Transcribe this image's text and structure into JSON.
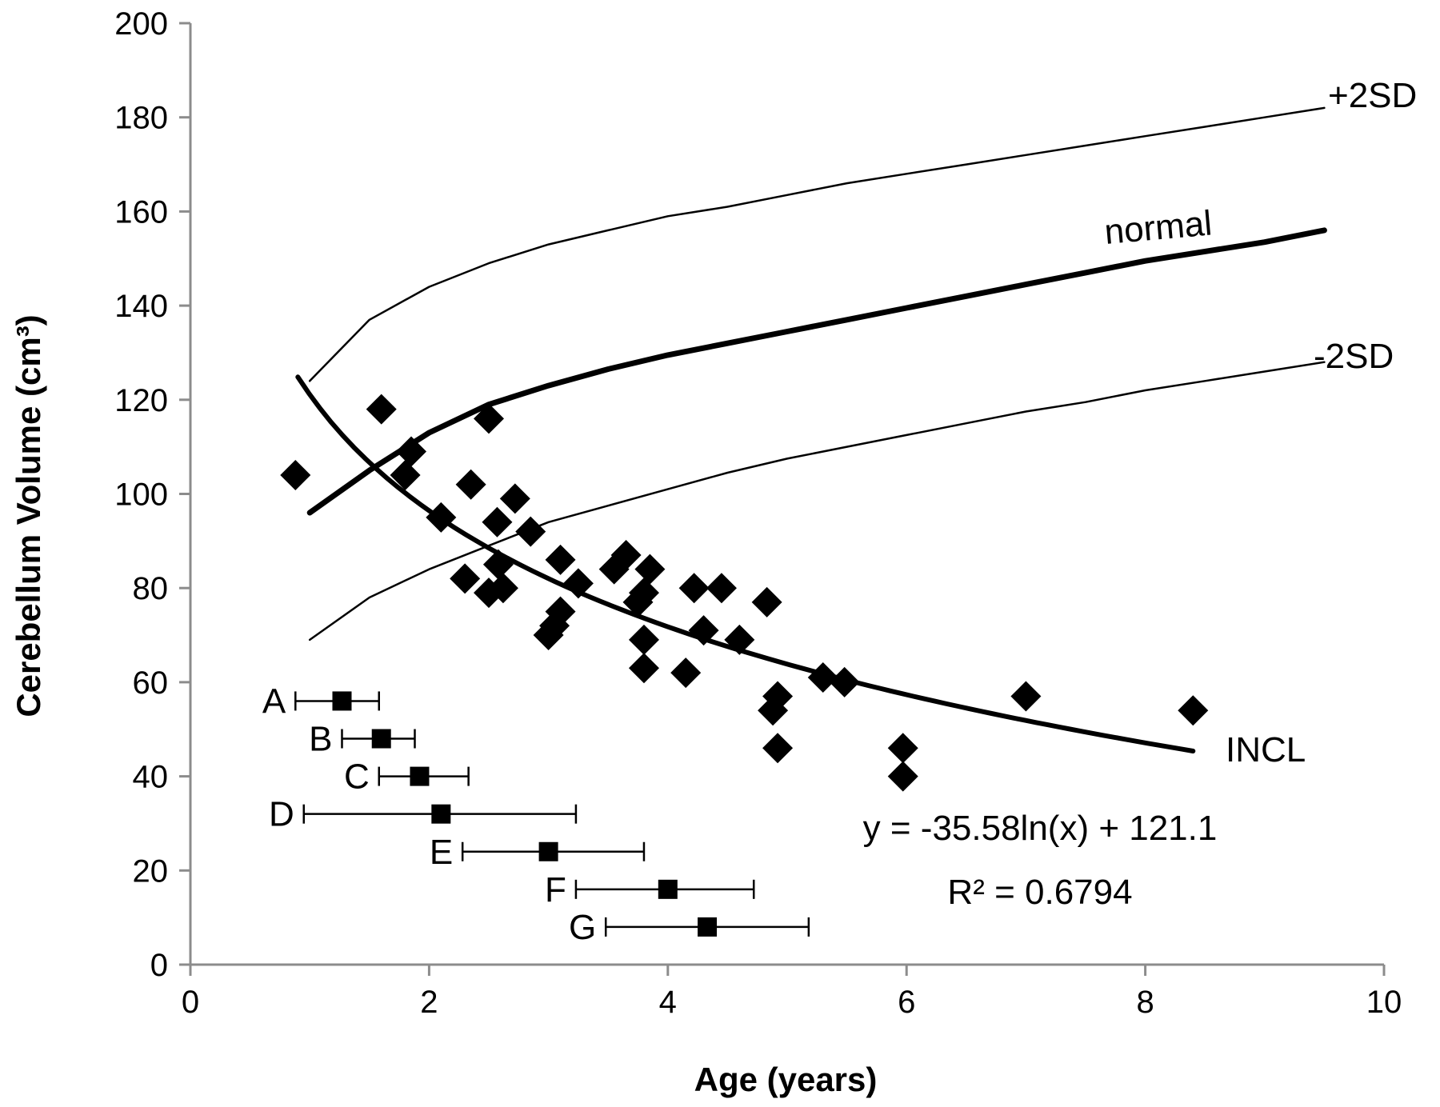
{
  "chart_data": {
    "type": "scatter",
    "xlabel": "Age (years)",
    "ylabel": "Cerebellum Volume (cm³)",
    "xlim": [
      0,
      10
    ],
    "ylim": [
      0,
      200
    ],
    "x_ticks": [
      0,
      2,
      4,
      6,
      8,
      10
    ],
    "y_ticks": [
      0,
      20,
      40,
      60,
      80,
      100,
      120,
      140,
      160,
      180,
      200
    ],
    "grid": false,
    "reference_curves": [
      {
        "label": "+2SD",
        "x": [
          1.0,
          1.5,
          2,
          2.5,
          3,
          3.5,
          4,
          4.5,
          5,
          5.5,
          6,
          6.5,
          7,
          7.5,
          8,
          8.5,
          9,
          9.5
        ],
        "y": [
          124,
          137,
          144,
          149,
          153,
          156,
          159,
          161,
          163.5,
          166,
          168,
          170,
          172,
          174,
          176,
          178,
          180,
          182
        ],
        "style": "thin"
      },
      {
        "label": "normal",
        "x": [
          1.0,
          1.5,
          2,
          2.5,
          3,
          3.5,
          4,
          4.5,
          5,
          5.5,
          6,
          6.5,
          7,
          7.5,
          8,
          8.5,
          9,
          9.5
        ],
        "y": [
          96,
          105,
          113,
          119,
          123,
          126.5,
          129.5,
          132,
          134.5,
          137,
          139.5,
          142,
          144.5,
          147,
          149.5,
          151.5,
          153.5,
          156
        ],
        "style": "thick"
      },
      {
        "label": "-2SD",
        "x": [
          1.0,
          1.5,
          2,
          2.5,
          3,
          3.5,
          4,
          4.5,
          5,
          5.5,
          6,
          6.5,
          7,
          7.5,
          8,
          8.5,
          9,
          9.5
        ],
        "y": [
          69,
          78,
          84,
          89,
          94,
          97.5,
          101,
          104.5,
          107.5,
          110,
          112.5,
          115,
          117.5,
          119.5,
          122,
          124,
          126,
          128
        ],
        "style": "thin"
      }
    ],
    "fit": {
      "label": "INCL",
      "coef": -35.58,
      "intercept": 121.1,
      "x_range": [
        0.9,
        8.4
      ],
      "equation": "y = -35.58ln(x) + 121.1",
      "r_squared": "R² = 0.6794"
    },
    "points": [
      {
        "x": 0.88,
        "y": 104
      },
      {
        "x": 1.6,
        "y": 118
      },
      {
        "x": 1.85,
        "y": 109
      },
      {
        "x": 1.8,
        "y": 104
      },
      {
        "x": 2.1,
        "y": 95
      },
      {
        "x": 2.35,
        "y": 102
      },
      {
        "x": 2.5,
        "y": 116
      },
      {
        "x": 2.72,
        "y": 99
      },
      {
        "x": 2.57,
        "y": 94
      },
      {
        "x": 2.85,
        "y": 92
      },
      {
        "x": 2.3,
        "y": 82
      },
      {
        "x": 2.5,
        "y": 79
      },
      {
        "x": 2.58,
        "y": 85
      },
      {
        "x": 2.62,
        "y": 80
      },
      {
        "x": 3.1,
        "y": 86
      },
      {
        "x": 3.25,
        "y": 81
      },
      {
        "x": 3.1,
        "y": 75
      },
      {
        "x": 3.05,
        "y": 72
      },
      {
        "x": 3.0,
        "y": 70
      },
      {
        "x": 3.55,
        "y": 84
      },
      {
        "x": 3.65,
        "y": 87
      },
      {
        "x": 3.85,
        "y": 84
      },
      {
        "x": 3.75,
        "y": 77
      },
      {
        "x": 3.8,
        "y": 79
      },
      {
        "x": 3.8,
        "y": 69
      },
      {
        "x": 3.8,
        "y": 63
      },
      {
        "x": 4.22,
        "y": 80
      },
      {
        "x": 4.45,
        "y": 80
      },
      {
        "x": 4.3,
        "y": 71
      },
      {
        "x": 4.6,
        "y": 69
      },
      {
        "x": 4.15,
        "y": 62
      },
      {
        "x": 4.83,
        "y": 77
      },
      {
        "x": 4.92,
        "y": 57
      },
      {
        "x": 4.88,
        "y": 54
      },
      {
        "x": 4.92,
        "y": 46
      },
      {
        "x": 5.3,
        "y": 61
      },
      {
        "x": 5.48,
        "y": 60
      },
      {
        "x": 5.97,
        "y": 46
      },
      {
        "x": 5.97,
        "y": 40
      },
      {
        "x": 7.0,
        "y": 57
      },
      {
        "x": 8.4,
        "y": 54
      }
    ],
    "age_ranges": [
      {
        "label": "A",
        "x": 1.27,
        "y": 56,
        "xmin": 0.88,
        "xmax": 1.58
      },
      {
        "label": "B",
        "x": 1.6,
        "y": 48,
        "xmin": 1.27,
        "xmax": 1.88
      },
      {
        "label": "C",
        "x": 1.92,
        "y": 40,
        "xmin": 1.58,
        "xmax": 2.33
      },
      {
        "label": "D",
        "x": 2.1,
        "y": 32,
        "xmin": 0.95,
        "xmax": 3.23
      },
      {
        "label": "E",
        "x": 3.0,
        "y": 24,
        "xmin": 2.28,
        "xmax": 3.8
      },
      {
        "label": "F",
        "x": 4.0,
        "y": 16,
        "xmin": 3.23,
        "xmax": 4.72
      },
      {
        "label": "G",
        "x": 4.33,
        "y": 8,
        "xmin": 3.48,
        "xmax": 5.18
      }
    ]
  }
}
